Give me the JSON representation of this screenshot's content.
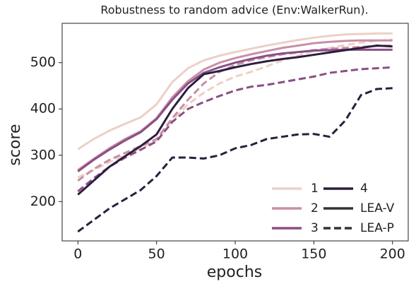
{
  "chart_data": {
    "type": "line",
    "title": "Robustness to random advice (Env:WalkerRun).",
    "x_label": "epochs",
    "y_label": "score",
    "x": [
      0,
      10,
      20,
      30,
      40,
      50,
      60,
      70,
      80,
      90,
      100,
      110,
      120,
      130,
      140,
      150,
      160,
      170,
      180,
      190,
      200
    ],
    "xlim": [
      -10,
      210
    ],
    "xticks": [
      0,
      50,
      100,
      150,
      200
    ],
    "ylim": [
      115,
      585
    ],
    "yticks": [
      200,
      300,
      400,
      500
    ],
    "styles": [
      {
        "name": "LEA-V",
        "dash": false
      },
      {
        "name": "LEA-P",
        "dash": true
      }
    ],
    "series": [
      {
        "name": "1",
        "color": "#ecd0c6",
        "lines": [
          {
            "values": [
              313,
              335,
              353,
              368,
              382,
              410,
              458,
              488,
              505,
              515,
              523,
              530,
              537,
              543,
              549,
              554,
              558,
              561,
              562,
              563,
              563
            ]
          },
          {
            "values": [
              252,
              268,
              285,
              300,
              315,
              332,
              375,
              410,
              435,
              455,
              470,
              480,
              492,
              505,
              515,
              525,
              532,
              538,
              543,
              547,
              550
            ]
          }
        ]
      },
      {
        "name": "2",
        "color": "#c98ea6",
        "lines": [
          {
            "values": [
              268,
              292,
              315,
              335,
              352,
              380,
              425,
              460,
              485,
              500,
              510,
              518,
              525,
              532,
              537,
              542,
              545,
              547,
              548,
              548,
              548
            ]
          },
          {
            "values": [
              245,
              270,
              290,
              305,
              320,
              335,
              380,
              420,
              455,
              480,
              495,
              505,
              512,
              518,
              522,
              527,
              530,
              532,
              534,
              536,
              537
            ]
          }
        ]
      },
      {
        "name": "3",
        "color": "#8a4f86",
        "lines": [
          {
            "values": [
              265,
              290,
              312,
              332,
              350,
              378,
              420,
              455,
              478,
              490,
              500,
              508,
              515,
              520,
              523,
              526,
              527,
              528,
              528,
              528,
              528
            ]
          },
          {
            "values": [
              222,
              250,
              275,
              295,
              312,
              330,
              372,
              400,
              415,
              428,
              440,
              448,
              452,
              458,
              464,
              470,
              478,
              482,
              486,
              488,
              490
            ]
          }
        ]
      },
      {
        "name": "4",
        "color": "#2c1e3e",
        "lines": [
          {
            "values": [
              215,
              245,
              275,
              298,
              320,
              345,
              400,
              445,
              475,
              482,
              490,
              497,
              503,
              508,
              512,
              517,
              522,
              527,
              532,
              537,
              535
            ]
          },
          {
            "values": [
              135,
              160,
              185,
              205,
              225,
              255,
              295,
              295,
              293,
              300,
              315,
              322,
              335,
              340,
              345,
              346,
              340,
              375,
              430,
              443,
              445
            ]
          }
        ]
      }
    ],
    "style_color": "#333333"
  }
}
